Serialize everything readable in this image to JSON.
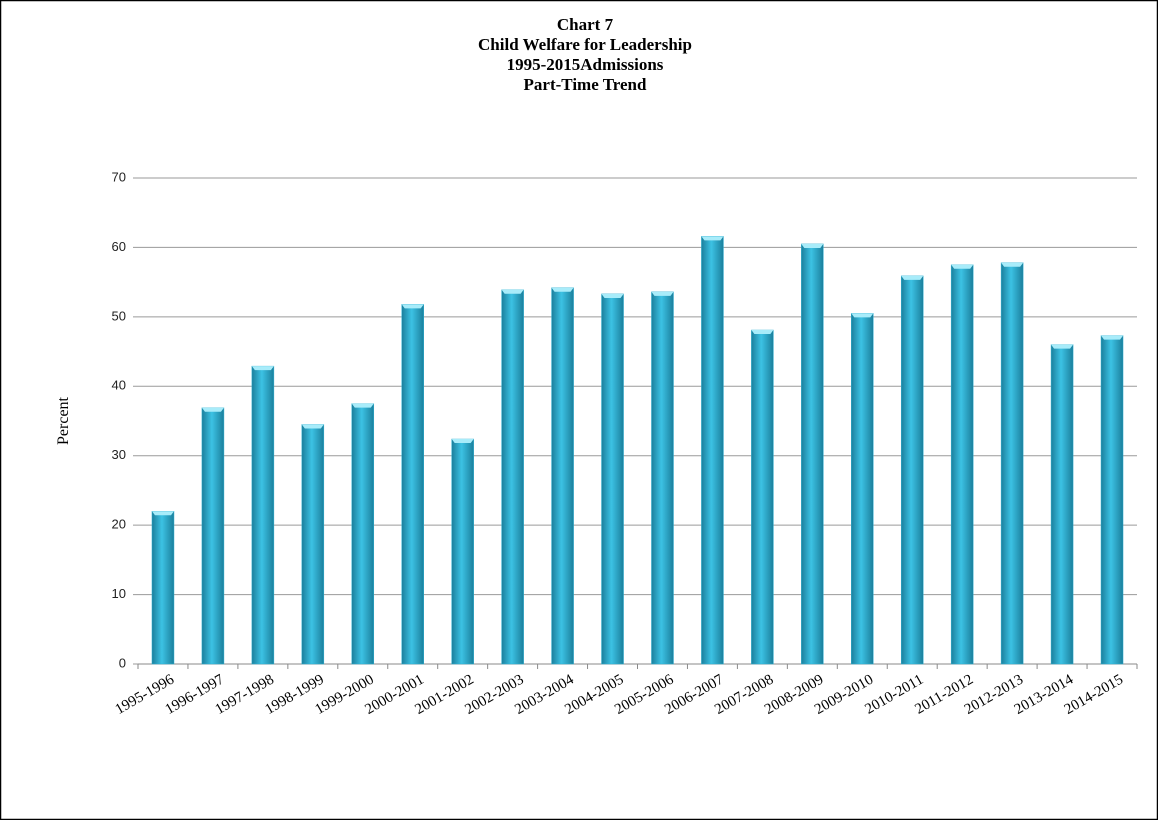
{
  "chart_data": {
    "type": "bar",
    "title": [
      "Chart 7",
      "Child Welfare for Leadership",
      "1995-2015Admissions",
      "Part-Time Trend"
    ],
    "y_label": "Percent",
    "categories": [
      "1995-1996",
      "1996-1997",
      "1997-1998",
      "1998-1999",
      "1999-2000",
      "2000-2001",
      "2001-2002",
      "2002-2003",
      "2003-2004",
      "2004-2005",
      "2005-2006",
      "2006-2007",
      "2007-2008",
      "2008-2009",
      "2009-2010",
      "2010-2011",
      "2011-2012",
      "2012-2013",
      "2013-2014",
      "2014-2015"
    ],
    "values": [
      22,
      36.9,
      42.9,
      34.5,
      37.5,
      51.8,
      32.4,
      53.9,
      54.2,
      53.3,
      53.6,
      61.6,
      48.1,
      60.5,
      50.5,
      55.9,
      57.5,
      57.8,
      46.0,
      47.3
    ],
    "color": "#2fb0d2",
    "ylim": [
      0,
      70
    ],
    "yticks": [
      0,
      10,
      20,
      30,
      40,
      50,
      60,
      70
    ],
    "grid": true
  }
}
